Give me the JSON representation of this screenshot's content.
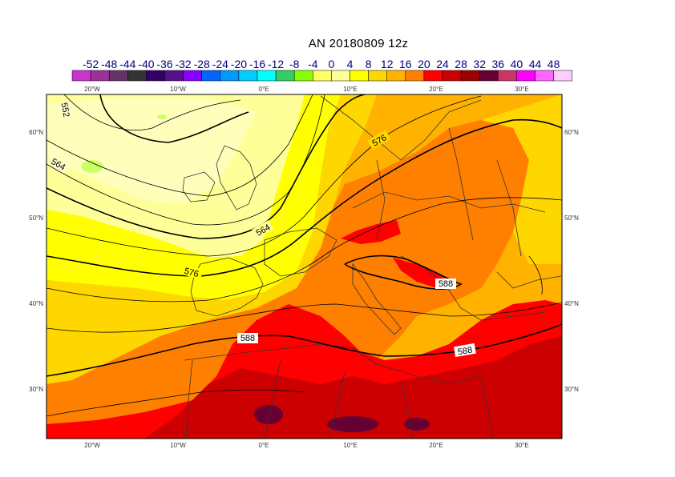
{
  "title": "AN  20180809 12z",
  "legend": {
    "labels": [
      "-52",
      "-48",
      "-44",
      "-40",
      "-36",
      "-32",
      "-28",
      "-24",
      "-20",
      "-16",
      "-12",
      "-8",
      "-4",
      "0",
      "4",
      "8",
      "12",
      "16",
      "20",
      "24",
      "28",
      "32",
      "36",
      "40",
      "44",
      "48"
    ],
    "colors": [
      "#cc33cc",
      "#993399",
      "#663366",
      "#333333",
      "#330066",
      "#551188",
      "#8800ff",
      "#0066ff",
      "#0099ff",
      "#00ccff",
      "#00ffff",
      "#33cc66",
      "#88ff00",
      "#ffff66",
      "#ffff99",
      "#ffff00",
      "#ffd700",
      "#ffb300",
      "#ff8000",
      "#ff0000",
      "#cc0000",
      "#990000",
      "#660033",
      "#cc3366",
      "#ff00ff",
      "#ff66ff",
      "#ffccff"
    ]
  },
  "axes": {
    "top": [
      "20°W",
      "10°W",
      "0°E",
      "10°E",
      "20°E",
      "30°E"
    ],
    "bottom": [
      "20°W",
      "10°W",
      "0°E",
      "10°E",
      "20°E",
      "30°E"
    ],
    "left": [
      "60°N",
      "50°N",
      "40°N",
      "30°N"
    ],
    "right": [
      "60°N",
      "50°N",
      "40°N",
      "30°N"
    ]
  },
  "contour_labels": [
    "552",
    "564",
    "564",
    "576",
    "576",
    "588",
    "588",
    "588"
  ]
}
